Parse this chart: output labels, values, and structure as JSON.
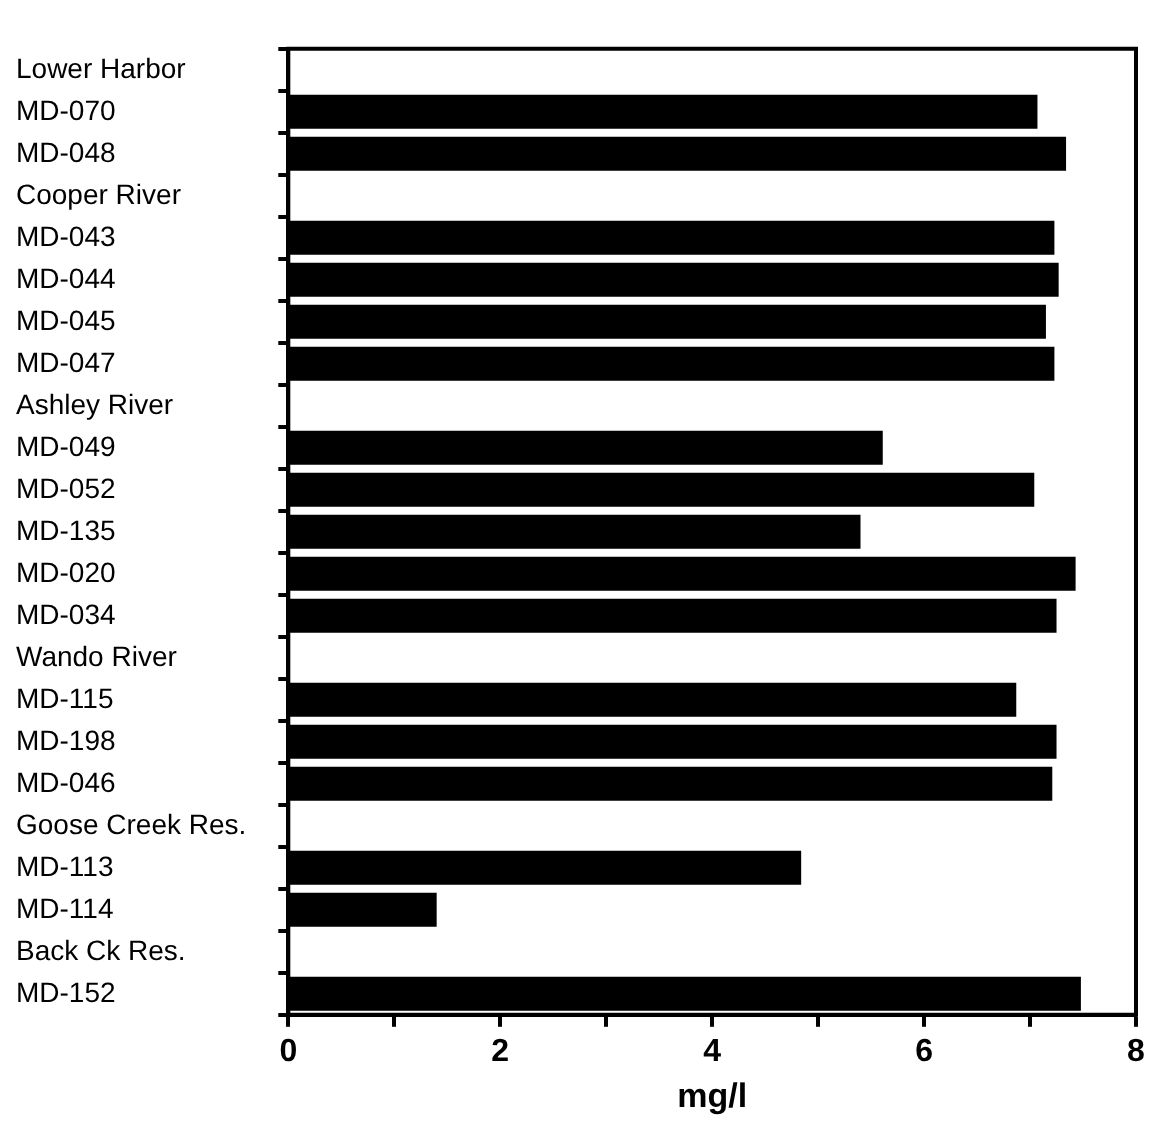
{
  "chart_data": {
    "type": "bar",
    "orientation": "horizontal",
    "xlabel": "mg/l",
    "categories": [
      "Lower Harbor",
      "MD-070",
      "MD-048",
      "Cooper River",
      "MD-043",
      "MD-044",
      "MD-045",
      "MD-047",
      "Ashley River",
      "MD-049",
      "MD-052",
      "MD-135",
      "MD-020",
      "MD-034",
      "Wando River",
      "MD-115",
      "MD-198",
      "MD-046",
      "Goose Creek Res.",
      "MD-113",
      "MD-114",
      "Back Ck Res.",
      "MD-152"
    ],
    "values": [
      null,
      7.07,
      7.34,
      null,
      7.23,
      7.27,
      7.15,
      7.23,
      null,
      5.61,
      7.04,
      5.4,
      7.43,
      7.25,
      null,
      6.87,
      7.25,
      7.21,
      null,
      4.84,
      1.4,
      null,
      7.48
    ],
    "color": "#000000",
    "xlim": [
      0,
      8
    ],
    "xticks": [
      0,
      {
        "value": 1,
        "label": null
      },
      2,
      {
        "value": 3,
        "label": null
      },
      4,
      {
        "value": 5,
        "label": null
      },
      6,
      {
        "value": 7,
        "label": null
      },
      8
    ],
    "legend": false
  }
}
